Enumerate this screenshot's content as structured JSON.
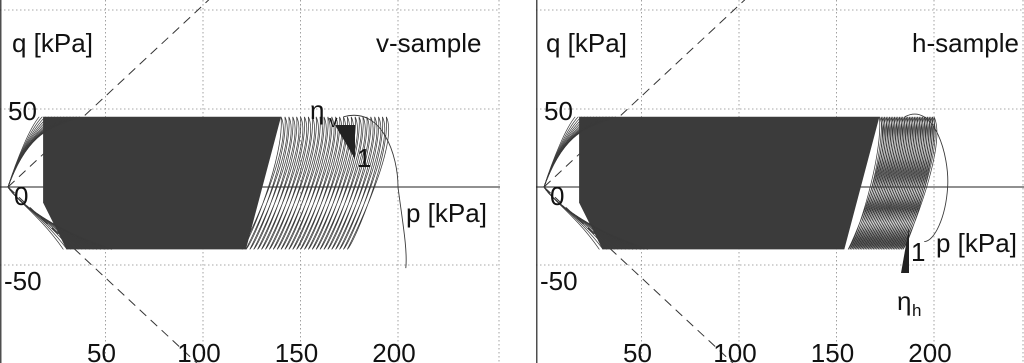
{
  "chart_data": [
    {
      "type": "line",
      "panel_label": "v-sample",
      "ylabel": "q [kPa]",
      "xlabel": "p [kPa]",
      "xticks": [
        "50",
        "100",
        "150",
        "200"
      ],
      "yticks": [
        "50",
        "0",
        "-50"
      ],
      "xlim": [
        0,
        210
      ],
      "ylim": [
        -70,
        65
      ],
      "grid": true,
      "guide_line_slopes": [
        1,
        -1
      ],
      "slope_marker": {
        "label": "η",
        "subscript": "v",
        "unit": "1"
      },
      "loading_envelope": {
        "q_max": 45,
        "q_min": -40,
        "p_start": 0,
        "p_end": 202
      }
    },
    {
      "type": "line",
      "panel_label": "h-sample",
      "ylabel": "q [kPa]",
      "xlabel": "p [kPa]",
      "xticks": [
        "50",
        "100",
        "150",
        "200"
      ],
      "yticks": [
        "50",
        "0",
        "-50"
      ],
      "xlim": [
        0,
        210
      ],
      "ylim": [
        -70,
        65
      ],
      "grid": true,
      "guide_line_slopes": [
        1,
        -1
      ],
      "slope_marker": {
        "label": "η",
        "subscript": "h",
        "unit": "1"
      },
      "loading_envelope": {
        "q_max": 45,
        "q_min": -40,
        "p_start": 0,
        "p_end": 208
      }
    }
  ],
  "style": {
    "curve_color": "#3a3a3a",
    "fill_color": "#3b3b3b",
    "grid_color": "#8a8a8a",
    "axis_color": "#222222"
  }
}
